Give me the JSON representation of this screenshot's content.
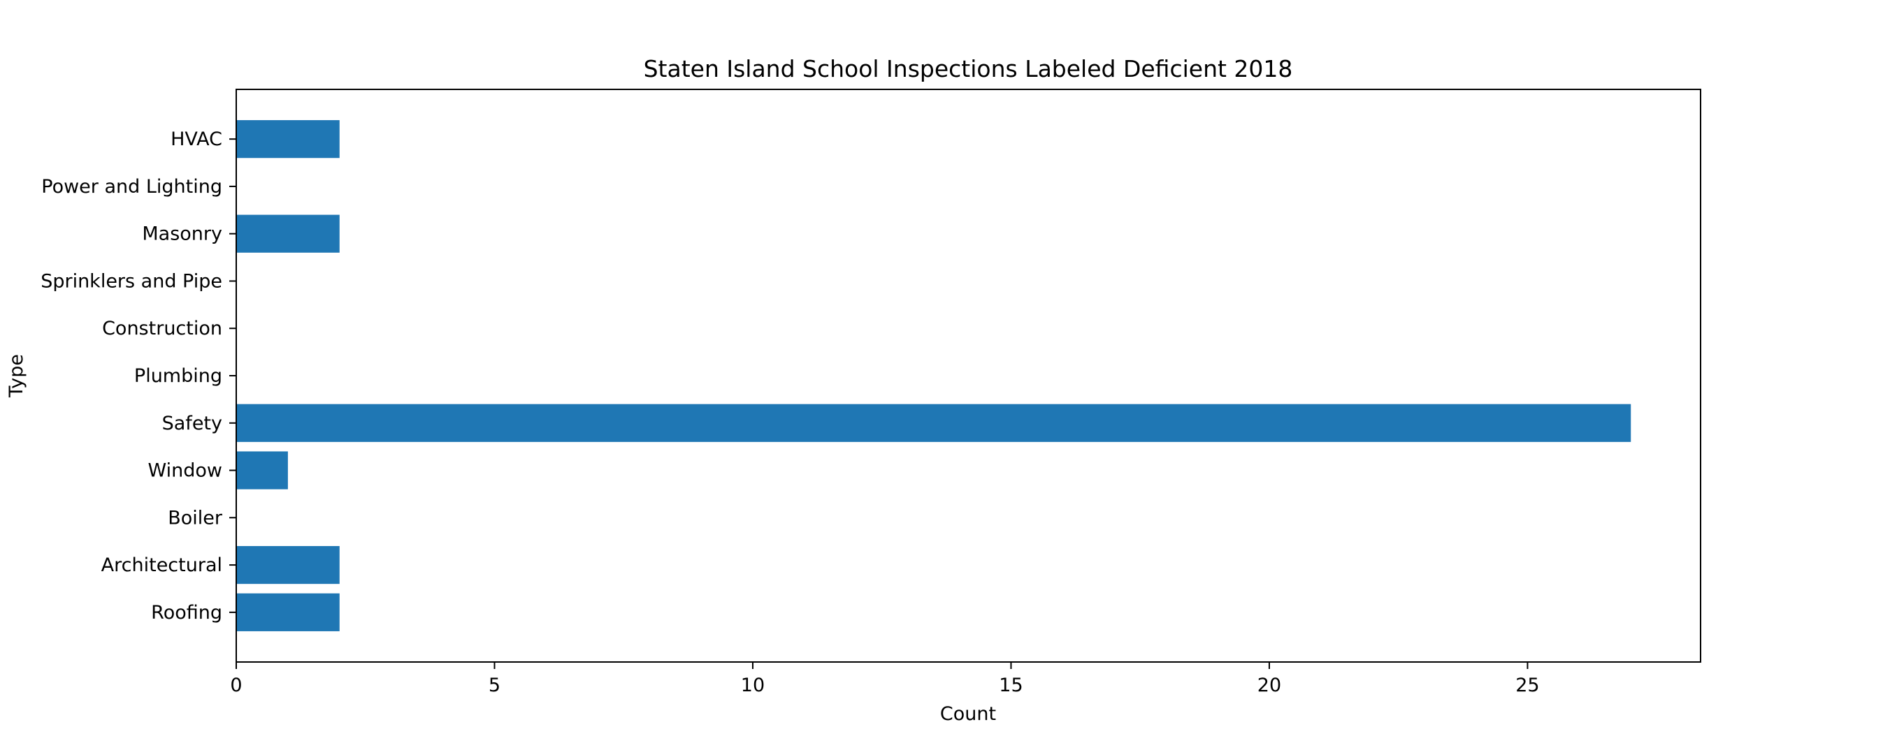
{
  "chart_data": {
    "type": "bar",
    "orientation": "horizontal",
    "title": "Staten Island School Inspections Labeled Deficient 2018",
    "xlabel": "Count",
    "ylabel": "Type",
    "categories": [
      "Roofing",
      "Architectural",
      "Boiler",
      "Window",
      "Safety",
      "Plumbing",
      "Construction",
      "Sprinklers and Pipe",
      "Masonry",
      "Power and Lighting",
      "HVAC"
    ],
    "values": [
      2,
      2,
      0,
      1,
      27,
      0,
      0,
      0,
      2,
      0,
      2
    ],
    "xlim": [
      0,
      28.35
    ],
    "xticks": [
      0,
      5,
      10,
      15,
      20,
      25
    ],
    "grid": false,
    "color": "#1f77b4"
  }
}
